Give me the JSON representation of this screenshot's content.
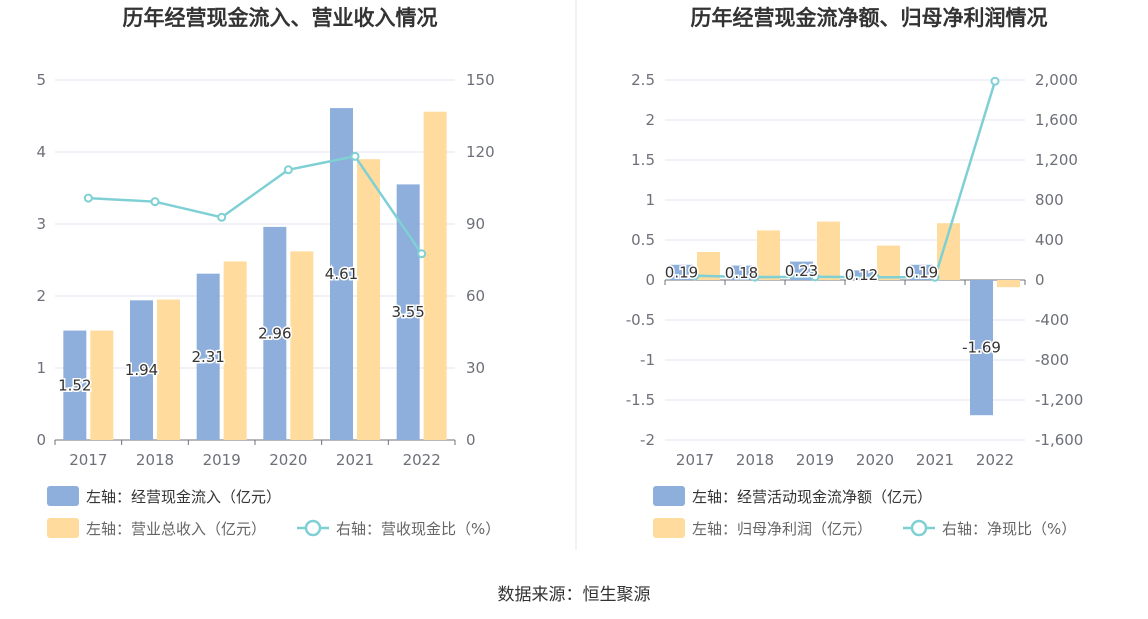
{
  "colors": {
    "bar_primary": "#8eaedc",
    "bar_secondary": "#ffdb9e",
    "line": "#7fd0d4",
    "grid": "#e0e6f1",
    "axis": "#6e7079",
    "divider": "#e6e6e6"
  },
  "chart_data": [
    {
      "type": "bar",
      "title": "历年经营现金流入、营业收入情况",
      "categories": [
        "2017",
        "2018",
        "2019",
        "2020",
        "2021",
        "2022"
      ],
      "left_axis": {
        "min": 0,
        "max": 5,
        "ticks": [
          "0",
          "1",
          "2",
          "3",
          "4",
          "5"
        ]
      },
      "right_axis": {
        "min": 0,
        "max": 150,
        "ticks": [
          "0",
          "30",
          "60",
          "90",
          "120",
          "150"
        ]
      },
      "series": [
        {
          "name": "左轴：经营现金流入（亿元）",
          "axis": "left",
          "kind": "bar",
          "color_key": "bar_primary",
          "values": [
            1.52,
            1.94,
            2.31,
            2.96,
            4.61,
            3.55
          ],
          "labels": [
            "1.52",
            "1.94",
            "2.31",
            "2.96",
            "4.61",
            "3.55"
          ]
        },
        {
          "name": "左轴：营业总收入（亿元）",
          "axis": "left",
          "kind": "bar",
          "color_key": "bar_secondary",
          "values": [
            1.52,
            1.95,
            2.48,
            2.62,
            3.9,
            4.56
          ]
        },
        {
          "name": "右轴：营收现金比（%）",
          "axis": "right",
          "kind": "line",
          "color_key": "line",
          "values": [
            100.8,
            99.3,
            92.8,
            112.6,
            118.2,
            77.6
          ]
        }
      ]
    },
    {
      "type": "bar",
      "title": "历年经营现金流净额、归母净利润情况",
      "categories": [
        "2017",
        "2018",
        "2019",
        "2020",
        "2021",
        "2022"
      ],
      "left_axis": {
        "min": -2,
        "max": 2.5,
        "ticks": [
          "-2",
          "-1.5",
          "-1",
          "-0.5",
          "0",
          "0.5",
          "1",
          "1.5",
          "2",
          "2.5"
        ]
      },
      "right_axis": {
        "min": -1600,
        "max": 2000,
        "ticks": [
          "-1,600",
          "-1,200",
          "-800",
          "-400",
          "0",
          "400",
          "800",
          "1,200",
          "1,600",
          "2,000"
        ]
      },
      "series": [
        {
          "name": "左轴：经营活动现金流净额（亿元）",
          "axis": "left",
          "kind": "bar",
          "color_key": "bar_primary",
          "values": [
            0.19,
            0.18,
            0.23,
            0.12,
            0.19,
            -1.69
          ],
          "labels": [
            "0.19",
            "0.18",
            "0.23",
            "0.12",
            "0.19",
            "-1.69"
          ]
        },
        {
          "name": "左轴：归母净利润（亿元）",
          "axis": "left",
          "kind": "bar",
          "color_key": "bar_secondary",
          "values": [
            0.35,
            0.62,
            0.73,
            0.43,
            0.71,
            -0.09
          ]
        },
        {
          "name": "右轴：净现比（%）",
          "axis": "right",
          "kind": "line",
          "color_key": "line",
          "values": [
            42,
            29,
            32,
            28,
            27,
            1988
          ]
        }
      ]
    }
  ],
  "source": "数据来源：恒生聚源"
}
